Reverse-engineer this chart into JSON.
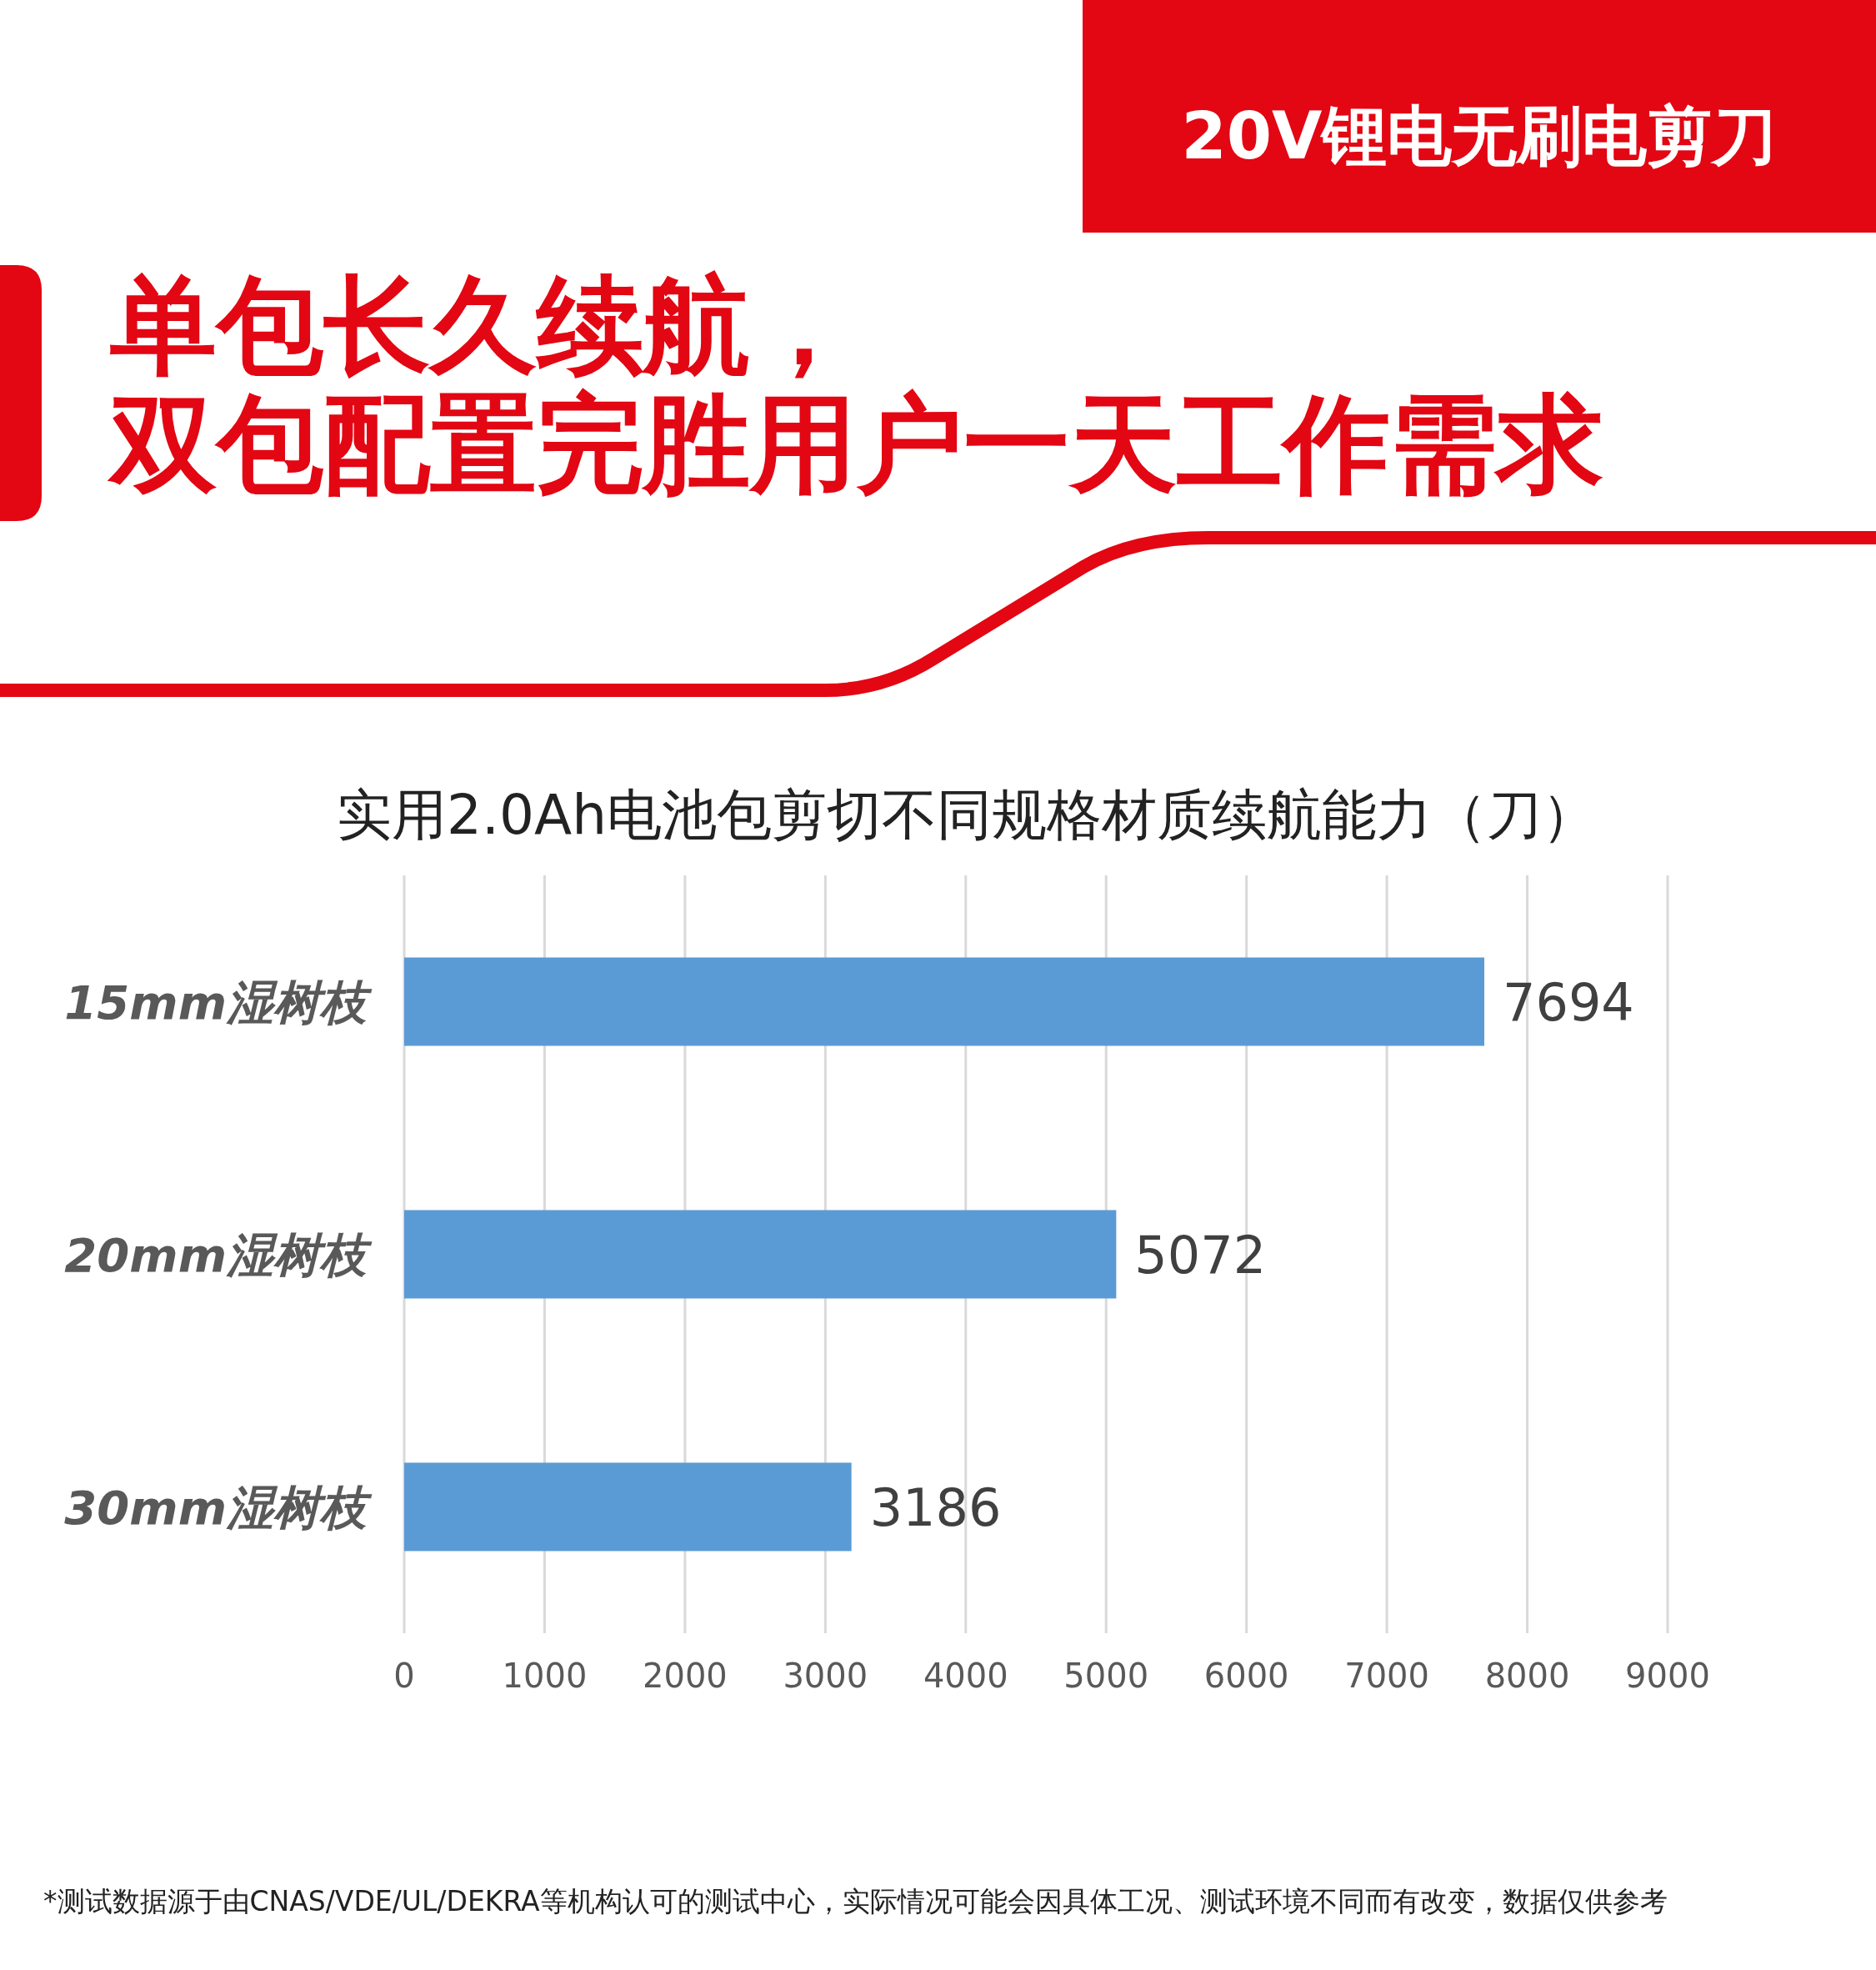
{
  "chart_data": {
    "type": "bar",
    "orientation": "horizontal",
    "title": "实用2.0Ah电池包剪切不同规格材质续航能力（刀）",
    "subtitle": "单包长久续航，双包配置完胜用户一天工作需求",
    "annotations": [
      "20V锂电无刷电剪刀",
      "*测试数据源于由CNAS/VDE/UL/DEKRA等机构认可的测试中心，实际情况可能会因具体工况、测试环境不同而有改变，数据仅供参考"
    ],
    "categories": [
      "15mm湿树枝",
      "20mm湿树枝",
      "30mm湿树枝"
    ],
    "values": [
      7694,
      5072,
      3186
    ],
    "color": "#5b9bd5",
    "xlim": [
      0,
      9000
    ],
    "xticks": [
      0,
      1000,
      2000,
      3000,
      4000,
      5000,
      6000,
      7000,
      8000,
      9000
    ],
    "grid": "x",
    "data_labels": true
  }
}
